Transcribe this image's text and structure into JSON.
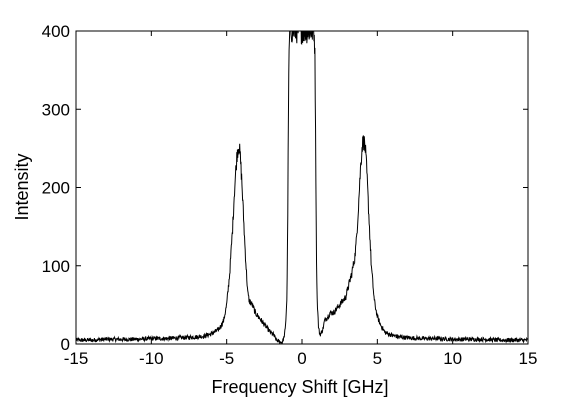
{
  "chart_data": {
    "type": "line",
    "title": "",
    "xlabel": "Frequency Shift [GHz]",
    "ylabel": "Intensity",
    "xlim": [
      -15,
      15
    ],
    "ylim": [
      0,
      400
    ],
    "xticks": [
      -15,
      -10,
      -5,
      0,
      5,
      10,
      15
    ],
    "yticks": [
      0,
      100,
      200,
      300,
      400
    ],
    "grid": false,
    "legend": "none",
    "line_color": "#000000",
    "series": [
      {
        "x": [
          -15,
          -14,
          -13,
          -12,
          -11,
          -10,
          -9,
          -8,
          -7,
          -6.5,
          -6,
          -5.5,
          -5.2,
          -5,
          -4.8,
          -4.6,
          -4.5,
          -4.4,
          -4.3,
          -4.2,
          -4.1,
          -4.0,
          -3.9,
          -3.8,
          -3.7,
          -3.6,
          -3.5,
          -3.3,
          -3.1,
          -2.9,
          -2.7,
          -2.5,
          -2.3,
          -2.1,
          -1.9,
          -1.7,
          -1.5,
          -1.4,
          -1.3,
          -1.2,
          -1.1,
          -1.0,
          -0.95,
          -0.9,
          -0.85,
          -0.8,
          -0.7,
          0.7,
          0.8,
          0.85,
          0.9,
          0.95,
          1.0,
          1.1,
          1.2,
          1.3,
          1.4,
          1.5,
          1.7,
          1.9,
          2.1,
          2.3,
          2.5,
          2.7,
          2.9,
          3.1,
          3.3,
          3.5,
          3.6,
          3.7,
          3.8,
          3.9,
          4.0,
          4.1,
          4.2,
          4.3,
          4.4,
          4.5,
          4.6,
          4.8,
          5.0,
          5.2,
          5.5,
          6,
          6.5,
          7,
          8,
          9,
          10,
          11,
          12,
          13,
          14,
          15
        ],
        "y": [
          5,
          5,
          6,
          6,
          6,
          7,
          7,
          8,
          9,
          10,
          13,
          19,
          30,
          50,
          90,
          150,
          190,
          220,
          245,
          255,
          240,
          210,
          170,
          130,
          95,
          65,
          55,
          50,
          40,
          35,
          30,
          25,
          20,
          15,
          12,
          5,
          3,
          2,
          3,
          8,
          20,
          60,
          150,
          300,
          380,
          400,
          400,
          400,
          400,
          380,
          280,
          130,
          60,
          20,
          12,
          15,
          20,
          30,
          35,
          40,
          40,
          45,
          50,
          55,
          60,
          75,
          90,
          110,
          130,
          160,
          195,
          230,
          255,
          260,
          250,
          220,
          180,
          140,
          100,
          55,
          35,
          25,
          15,
          11,
          9,
          8,
          7,
          7,
          6,
          6,
          6,
          5,
          5,
          5
        ]
      }
    ]
  }
}
